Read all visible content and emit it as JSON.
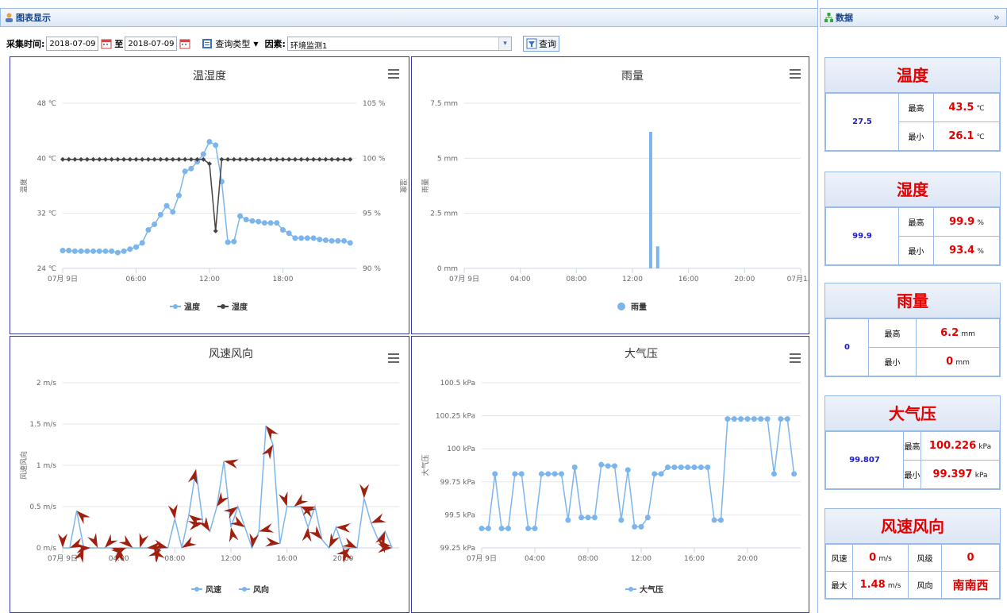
{
  "left_panel": {
    "title": "图表显示"
  },
  "right_panel": {
    "title": "数据",
    "collapse_icon": "»"
  },
  "toolbar": {
    "time_label": "采集时间:",
    "start_date": "2018-07-09",
    "to_label": "至",
    "end_date": "2018-07-09",
    "query_type_label": "查询类型",
    "factor_label": "因素:",
    "factor_value": "环境监测1",
    "query_button": "查询"
  },
  "colors": {
    "series_blue": "#7cb5ec",
    "series_dark": "#434348",
    "arrow": "#a02010",
    "accent_red": "#e30000",
    "accent_blue": "#1a1ad0"
  },
  "chart_data": [
    {
      "id": "temp_humidity",
      "type": "line",
      "title": "温湿度",
      "x_ticks": [
        "07月 9日",
        "06:00",
        "12:00",
        "18:00"
      ],
      "x_range": [
        0,
        24
      ],
      "y_left": {
        "label": "温度",
        "ticks": [
          "24 ℃",
          "32 ℃",
          "40 ℃",
          "48 ℃"
        ],
        "range": [
          24,
          48
        ]
      },
      "y_right": {
        "label": "湿度",
        "ticks": [
          "90 %",
          "95 %",
          "100 %",
          "105 %"
        ],
        "range": [
          90,
          105
        ]
      },
      "series": [
        {
          "name": "温度",
          "axis": "left",
          "x": [
            0,
            0.5,
            1,
            1.5,
            2,
            2.5,
            3,
            3.5,
            4,
            4.5,
            5,
            5.5,
            6,
            6.5,
            7,
            7.5,
            8,
            8.5,
            9,
            9.5,
            10,
            10.5,
            11,
            11.5,
            12,
            12.5,
            13,
            13.5,
            14,
            14.5,
            15,
            15.5,
            16,
            16.5,
            17,
            17.5,
            18,
            18.5,
            19,
            19.5,
            20,
            20.5,
            21,
            21.5,
            22,
            22.5,
            23,
            23.5
          ],
          "y": [
            26.6,
            26.6,
            26.5,
            26.5,
            26.5,
            26.5,
            26.5,
            26.5,
            26.5,
            26.3,
            26.5,
            26.8,
            27.1,
            27.7,
            29.6,
            30.4,
            31.8,
            33.1,
            32.2,
            34.6,
            38.1,
            38.5,
            39.5,
            40.6,
            42.4,
            41.9,
            36.6,
            27.8,
            27.9,
            31.6,
            31.1,
            30.9,
            30.8,
            30.6,
            30.6,
            30.6,
            29.6,
            29.1,
            28.4,
            28.4,
            28.4,
            28.4,
            28.2,
            28.1,
            28.0,
            28.0,
            28.0,
            27.7
          ]
        },
        {
          "name": "湿度",
          "axis": "right",
          "x": [
            0,
            0.5,
            1,
            1.5,
            2,
            2.5,
            3,
            3.5,
            4,
            4.5,
            5,
            5.5,
            6,
            6.5,
            7,
            7.5,
            8,
            8.5,
            9,
            9.5,
            10,
            10.5,
            11,
            11.5,
            12,
            12.5,
            13,
            13.5,
            14,
            14.5,
            15,
            15.5,
            16,
            16.5,
            17,
            17.5,
            18,
            18.5,
            19,
            19.5,
            20,
            20.5,
            21,
            21.5,
            22,
            22.5,
            23,
            23.5
          ],
          "y": [
            99.9,
            99.9,
            99.9,
            99.9,
            99.9,
            99.9,
            99.9,
            99.9,
            99.9,
            99.9,
            99.9,
            99.9,
            99.9,
            99.9,
            99.9,
            99.9,
            99.9,
            99.9,
            99.9,
            99.9,
            99.9,
            99.9,
            99.9,
            99.9,
            99.5,
            93.4,
            99.9,
            99.9,
            99.9,
            99.9,
            99.9,
            99.9,
            99.9,
            99.9,
            99.9,
            99.9,
            99.9,
            99.9,
            99.9,
            99.9,
            99.9,
            99.9,
            99.9,
            99.9,
            99.9,
            99.9,
            99.9,
            99.9
          ]
        }
      ]
    },
    {
      "id": "rainfall",
      "type": "bar",
      "title": "雨量",
      "x_ticks": [
        "07月 9日",
        "04:00",
        "08:00",
        "12:00",
        "16:00",
        "20:00",
        "07月1..."
      ],
      "x_range": [
        0,
        24
      ],
      "y_left": {
        "label": "雨量",
        "ticks": [
          "0 mm",
          "2.5 mm",
          "5 mm",
          "7.5 mm"
        ],
        "range": [
          0,
          7.5
        ]
      },
      "series": [
        {
          "name": "雨量",
          "x": [
            13.3,
            13.8
          ],
          "y": [
            6.2,
            1.0
          ]
        }
      ]
    },
    {
      "id": "wind",
      "type": "line",
      "title": "风速风向",
      "x_ticks": [
        "07月 9日",
        "04:00",
        "08:00",
        "12:00",
        "16:00",
        "20:00"
      ],
      "x_range": [
        0,
        24
      ],
      "y_left": {
        "label": "风速风向",
        "ticks": [
          "0 m/s",
          "0.5 m/s",
          "1 m/s",
          "1.5 m/s",
          "2 m/s"
        ],
        "range": [
          0,
          2
        ]
      },
      "series": [
        {
          "name": "风速",
          "x": [
            0,
            0.5,
            1,
            1.5,
            2,
            2.5,
            3,
            3.5,
            4,
            4.5,
            5,
            5.5,
            6,
            6.5,
            7,
            7.5,
            8,
            8.5,
            9,
            9.5,
            10,
            10.5,
            11,
            11.5,
            12,
            12.5,
            13,
            13.5,
            14,
            14.5,
            15,
            15.5,
            16,
            16.5,
            17,
            17.5,
            18,
            18.5,
            19,
            19.5,
            20,
            20.5,
            21,
            21.5,
            22,
            22.5,
            23,
            23.5
          ],
          "y": [
            0,
            0,
            0.45,
            0,
            0,
            0,
            0,
            0,
            0,
            0,
            0,
            0,
            0,
            0,
            0,
            0,
            0.35,
            0,
            0.4,
            0.95,
            0.3,
            0.2,
            0.5,
            1.05,
            0.25,
            0.5,
            0.25,
            0,
            0.2,
            1.48,
            1.25,
            0.05,
            0.5,
            0.5,
            0.5,
            0.25,
            0.5,
            0.1,
            0,
            0.25,
            0,
            0,
            0,
            0.6,
            0.3,
            0.1,
            0.2,
            0
          ]
        },
        {
          "name": "风向",
          "x": [],
          "y": []
        }
      ]
    },
    {
      "id": "pressure",
      "type": "line",
      "title": "大气压",
      "x_ticks": [
        "07月 9日",
        "04:00",
        "08:00",
        "12:00",
        "16:00",
        "20:00"
      ],
      "x_range": [
        0,
        24
      ],
      "y_left": {
        "label": "大气压",
        "ticks": [
          "99.25 kPa",
          "99.5 kPa",
          "99.75 kPa",
          "100 kPa",
          "100.25 kPa",
          "100.5 kPa"
        ],
        "range": [
          99.25,
          100.5
        ]
      },
      "series": [
        {
          "name": "大气压",
          "x": [
            0,
            0.5,
            1,
            1.5,
            2,
            2.5,
            3,
            3.5,
            4,
            4.5,
            5,
            5.5,
            6,
            6.5,
            7,
            7.5,
            8,
            8.5,
            9,
            9.5,
            10,
            10.5,
            11,
            11.5,
            12,
            12.5,
            13,
            13.5,
            14,
            14.5,
            15,
            15.5,
            16,
            16.5,
            17,
            17.5,
            18,
            18.5,
            19,
            19.5,
            20,
            20.5,
            21,
            21.5,
            22,
            22.5,
            23,
            23.5
          ],
          "y": [
            99.397,
            99.397,
            99.81,
            99.397,
            99.397,
            99.81,
            99.81,
            99.397,
            99.397,
            99.81,
            99.81,
            99.81,
            99.81,
            99.46,
            99.86,
            99.48,
            99.48,
            99.48,
            99.88,
            99.87,
            99.87,
            99.46,
            99.84,
            99.41,
            99.41,
            99.48,
            99.81,
            99.81,
            99.86,
            99.86,
            99.86,
            99.86,
            99.86,
            99.86,
            99.86,
            99.46,
            99.46,
            100.226,
            100.226,
            100.226,
            100.226,
            100.226,
            100.226,
            100.226,
            99.81,
            100.226,
            100.226,
            99.81
          ]
        }
      ]
    }
  ],
  "cards": {
    "temp": {
      "title": "温度",
      "value": "27.5",
      "max_label": "最高",
      "max": "43.5",
      "max_unit": "℃",
      "min_label": "最小",
      "min": "26.1",
      "min_unit": "℃"
    },
    "hum": {
      "title": "湿度",
      "value": "99.9",
      "max_label": "最高",
      "max": "99.9",
      "max_unit": "%",
      "min_label": "最小",
      "min": "93.4",
      "min_unit": "%"
    },
    "rain": {
      "title": "雨量",
      "value": "0",
      "max_label": "最高",
      "max": "6.2",
      "max_unit": "mm",
      "min_label": "最小",
      "min": "0",
      "min_unit": "mm"
    },
    "press": {
      "title": "大气压",
      "value": "99.807",
      "max_label": "最高",
      "max": "100.226",
      "max_unit": "kPa",
      "min_label": "最小",
      "min": "99.397",
      "min_unit": "kPa"
    },
    "wind": {
      "title": "风速风向",
      "speed_label": "风速",
      "speed": "0",
      "speed_unit": "m/s",
      "level_label": "风级",
      "level": "0",
      "max_label": "最大",
      "max": "1.48",
      "max_unit": "m/s",
      "dir_label": "风向",
      "dir": "南南西"
    }
  }
}
